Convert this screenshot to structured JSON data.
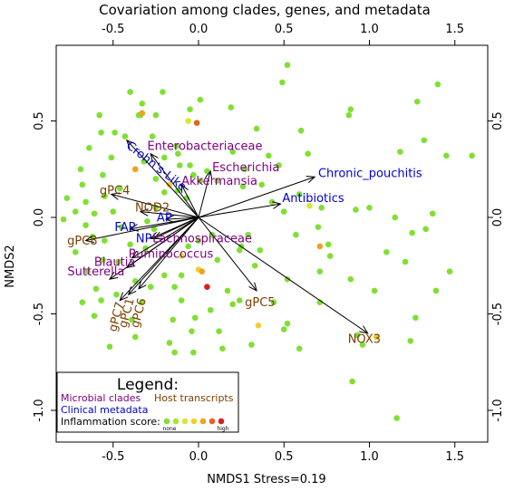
{
  "chart_data": {
    "type": "scatter",
    "title": "Covariation among clades, genes, and metadata",
    "xlabel": "NMDS1 Stress=0.19",
    "ylabel": "NMDS2",
    "xlim": [
      -0.85,
      1.7
    ],
    "ylim": [
      -1.2,
      0.85
    ],
    "xticks": [
      "-0.5",
      "0.0",
      "0.5",
      "1.0",
      "1.5"
    ],
    "xtick_values": [
      -0.5,
      0.0,
      0.5,
      1.0,
      1.5
    ],
    "yticks": [
      "-1.0",
      "-0.5",
      "0.0",
      "0.5"
    ],
    "ytick_values": [
      -1.0,
      -0.5,
      0.0,
      0.5
    ],
    "colors": {
      "microbial": "#800080",
      "clinical": "#0000cc",
      "host": "#7b3f00",
      "inflammation_scale": [
        "#7fe033",
        "#a8e833",
        "#d8e831",
        "#f0d030",
        "#f0a020",
        "#e86020",
        "#d82020"
      ]
    },
    "points": [
      {
        "x": 0.52,
        "y": 0.79,
        "c": 0
      },
      {
        "x": 0.49,
        "y": 0.7,
        "c": 0
      },
      {
        "x": 1.4,
        "y": 0.69,
        "c": 0
      },
      {
        "x": 1.28,
        "y": 0.6,
        "c": 0
      },
      {
        "x": -0.21,
        "y": 0.65,
        "c": 0
      },
      {
        "x": 0.01,
        "y": 0.61,
        "c": 0
      },
      {
        "x": -0.4,
        "y": 0.65,
        "c": 0
      },
      {
        "x": -0.33,
        "y": 0.59,
        "c": 0
      },
      {
        "x": -0.05,
        "y": 0.56,
        "c": 0
      },
      {
        "x": -0.34,
        "y": 0.53,
        "c": 0
      },
      {
        "x": -0.25,
        "y": 0.53,
        "c": 0
      },
      {
        "x": 0.19,
        "y": 0.57,
        "c": 0
      },
      {
        "x": -0.35,
        "y": 0.53,
        "c": 0
      },
      {
        "x": -0.58,
        "y": 0.53,
        "c": 0
      },
      {
        "x": -0.06,
        "y": 0.5,
        "c": 2
      },
      {
        "x": -0.01,
        "y": 0.49,
        "c": 5
      },
      {
        "x": -0.33,
        "y": 0.54,
        "c": 4
      },
      {
        "x": -0.49,
        "y": 0.44,
        "c": 0
      },
      {
        "x": -0.43,
        "y": 0.42,
        "c": 0
      },
      {
        "x": -0.57,
        "y": 0.44,
        "c": 0
      },
      {
        "x": -0.27,
        "y": 0.42,
        "c": 0
      },
      {
        "x": 0.34,
        "y": 0.46,
        "c": 0
      },
      {
        "x": 0.6,
        "y": 0.45,
        "c": 0
      },
      {
        "x": 0.89,
        "y": 0.56,
        "c": 0
      },
      {
        "x": 0.88,
        "y": 0.53,
        "c": 0
      },
      {
        "x": 1.32,
        "y": 0.4,
        "c": 0
      },
      {
        "x": 1.18,
        "y": 0.34,
        "c": 0
      },
      {
        "x": 1.45,
        "y": 0.32,
        "c": 0
      },
      {
        "x": 1.6,
        "y": 0.32,
        "c": 0
      },
      {
        "x": -0.64,
        "y": 0.36,
        "c": 0
      },
      {
        "x": -0.51,
        "y": 0.31,
        "c": 0
      },
      {
        "x": -0.69,
        "y": 0.25,
        "c": 0
      },
      {
        "x": -0.56,
        "y": 0.22,
        "c": 0
      },
      {
        "x": -0.68,
        "y": 0.17,
        "c": 0
      },
      {
        "x": -0.77,
        "y": 0.1,
        "c": 0
      },
      {
        "x": -0.66,
        "y": 0.08,
        "c": 0
      },
      {
        "x": -0.72,
        "y": 0.03,
        "c": 0
      },
      {
        "x": -0.79,
        "y": -0.01,
        "c": 0
      },
      {
        "x": -0.61,
        "y": 0.02,
        "c": 0
      },
      {
        "x": -0.66,
        "y": -0.04,
        "c": 0
      },
      {
        "x": -0.55,
        "y": 0.11,
        "c": 0
      },
      {
        "x": -0.46,
        "y": 0.15,
        "c": 0
      },
      {
        "x": -0.13,
        "y": 0.37,
        "c": 0
      },
      {
        "x": -0.12,
        "y": 0.33,
        "c": 0
      },
      {
        "x": -0.05,
        "y": 0.27,
        "c": 0
      },
      {
        "x": -0.11,
        "y": 0.27,
        "c": 0
      },
      {
        "x": 0.05,
        "y": 0.24,
        "c": 0
      },
      {
        "x": -0.03,
        "y": 0.22,
        "c": 0
      },
      {
        "x": 0.01,
        "y": 0.19,
        "c": 0
      },
      {
        "x": 0.11,
        "y": 0.19,
        "c": 0
      },
      {
        "x": 0.27,
        "y": 0.25,
        "c": 0
      },
      {
        "x": 0.2,
        "y": 0.34,
        "c": 0
      },
      {
        "x": 0.41,
        "y": 0.32,
        "c": 0
      },
      {
        "x": 0.47,
        "y": 0.27,
        "c": 0
      },
      {
        "x": 0.64,
        "y": 0.33,
        "c": 0
      },
      {
        "x": -0.37,
        "y": 0.25,
        "c": 4
      },
      {
        "x": -0.32,
        "y": 0.29,
        "c": 0
      },
      {
        "x": -0.2,
        "y": 0.31,
        "c": 0
      },
      {
        "x": -0.25,
        "y": 0.2,
        "c": 0
      },
      {
        "x": -0.2,
        "y": 0.13,
        "c": 0
      },
      {
        "x": -0.17,
        "y": 0.17,
        "c": 3
      },
      {
        "x": -0.12,
        "y": 0.14,
        "c": 0
      },
      {
        "x": -0.07,
        "y": 0.1,
        "c": 0
      },
      {
        "x": 0.26,
        "y": 0.16,
        "c": 0
      },
      {
        "x": 0.37,
        "y": 0.17,
        "c": 0
      },
      {
        "x": 0.43,
        "y": 0.08,
        "c": 0
      },
      {
        "x": 0.59,
        "y": 0.12,
        "c": 0
      },
      {
        "x": 0.5,
        "y": 0.03,
        "c": 0
      },
      {
        "x": 0.72,
        "y": 0.05,
        "c": 0
      },
      {
        "x": 0.92,
        "y": 0.04,
        "c": 0
      },
      {
        "x": 1.0,
        "y": 0.05,
        "c": 0
      },
      {
        "x": 1.15,
        "y": 0.0,
        "c": 0
      },
      {
        "x": 1.37,
        "y": 0.02,
        "c": 0
      },
      {
        "x": 1.33,
        "y": -0.06,
        "c": 0
      },
      {
        "x": 1.25,
        "y": -0.08,
        "c": 0
      },
      {
        "x": 0.65,
        "y": 0.06,
        "c": 2
      },
      {
        "x": 0.7,
        "y": -0.05,
        "c": 0
      },
      {
        "x": -0.5,
        "y": 0.03,
        "c": 0
      },
      {
        "x": -0.45,
        "y": -0.05,
        "c": 0
      },
      {
        "x": -0.3,
        "y": -0.02,
        "c": 0
      },
      {
        "x": -0.25,
        "y": 0.05,
        "c": 0
      },
      {
        "x": -0.4,
        "y": -0.14,
        "c": 0
      },
      {
        "x": -0.55,
        "y": -0.12,
        "c": 0
      },
      {
        "x": -0.62,
        "y": -0.1,
        "c": 0
      },
      {
        "x": -0.72,
        "y": -0.18,
        "c": 0
      },
      {
        "x": -0.56,
        "y": -0.22,
        "c": 0
      },
      {
        "x": -0.47,
        "y": -0.23,
        "c": 0
      },
      {
        "x": -0.37,
        "y": -0.33,
        "c": 0
      },
      {
        "x": -0.65,
        "y": -0.28,
        "c": 0
      },
      {
        "x": -0.6,
        "y": -0.37,
        "c": 0
      },
      {
        "x": -0.57,
        "y": -0.43,
        "c": 0
      },
      {
        "x": -0.48,
        "y": -0.4,
        "c": 0
      },
      {
        "x": -0.68,
        "y": -0.44,
        "c": 0
      },
      {
        "x": -0.61,
        "y": -0.51,
        "c": 0
      },
      {
        "x": -0.37,
        "y": -0.62,
        "c": 0
      },
      {
        "x": -0.39,
        "y": -0.53,
        "c": 0
      },
      {
        "x": -0.33,
        "y": -0.44,
        "c": 0
      },
      {
        "x": -0.28,
        "y": -0.36,
        "c": 0
      },
      {
        "x": -0.2,
        "y": -0.3,
        "c": 0
      },
      {
        "x": -0.14,
        "y": -0.36,
        "c": 0
      },
      {
        "x": -0.1,
        "y": -0.3,
        "c": 0
      },
      {
        "x": -0.1,
        "y": -0.2,
        "c": 2
      },
      {
        "x": -0.06,
        "y": -0.15,
        "c": 0
      },
      {
        "x": 0.0,
        "y": -0.27,
        "c": 3
      },
      {
        "x": 0.02,
        "y": -0.28,
        "c": 4
      },
      {
        "x": 0.05,
        "y": -0.36,
        "c": 6
      },
      {
        "x": 0.11,
        "y": -0.22,
        "c": 0
      },
      {
        "x": 0.17,
        "y": -0.38,
        "c": 0
      },
      {
        "x": 0.2,
        "y": -0.45,
        "c": 0
      },
      {
        "x": 0.24,
        "y": -0.43,
        "c": 0
      },
      {
        "x": 0.07,
        "y": -0.48,
        "c": 0
      },
      {
        "x": -0.02,
        "y": -0.52,
        "c": 0
      },
      {
        "x": -0.1,
        "y": -0.43,
        "c": 0
      },
      {
        "x": -0.15,
        "y": -0.53,
        "c": 0
      },
      {
        "x": 0.12,
        "y": -0.59,
        "c": 0
      },
      {
        "x": 0.14,
        "y": -0.68,
        "c": 0
      },
      {
        "x": -0.04,
        "y": -0.59,
        "c": 0
      },
      {
        "x": -0.17,
        "y": -0.65,
        "c": 0
      },
      {
        "x": -0.14,
        "y": -0.7,
        "c": 0
      },
      {
        "x": -0.03,
        "y": -0.7,
        "c": 0
      },
      {
        "x": 0.31,
        "y": -0.66,
        "c": 0
      },
      {
        "x": 0.35,
        "y": -0.56,
        "c": 3
      },
      {
        "x": 0.44,
        "y": -0.44,
        "c": 0
      },
      {
        "x": 0.52,
        "y": -0.55,
        "c": 0
      },
      {
        "x": 0.59,
        "y": -0.68,
        "c": 0
      },
      {
        "x": 0.33,
        "y": -0.25,
        "c": 0
      },
      {
        "x": 0.36,
        "y": -0.17,
        "c": 0
      },
      {
        "x": 0.24,
        "y": -0.17,
        "c": 0
      },
      {
        "x": 0.52,
        "y": -0.32,
        "c": 0
      },
      {
        "x": 0.57,
        "y": -0.09,
        "c": 0
      },
      {
        "x": 0.76,
        "y": -0.14,
        "c": 0
      },
      {
        "x": 0.77,
        "y": -0.2,
        "c": 0
      },
      {
        "x": 0.71,
        "y": -0.28,
        "c": 0
      },
      {
        "x": 0.71,
        "y": -0.15,
        "c": 4
      },
      {
        "x": 0.89,
        "y": -0.32,
        "c": 0
      },
      {
        "x": 1.1,
        "y": -0.18,
        "c": 0
      },
      {
        "x": 1.21,
        "y": -0.23,
        "c": 0
      },
      {
        "x": 1.03,
        "y": -0.38,
        "c": 0
      },
      {
        "x": 1.39,
        "y": -0.38,
        "c": 0
      },
      {
        "x": 1.47,
        "y": -0.28,
        "c": 0
      },
      {
        "x": 1.27,
        "y": -0.52,
        "c": 0
      },
      {
        "x": 1.24,
        "y": -0.64,
        "c": 0
      },
      {
        "x": 0.5,
        "y": -0.58,
        "c": 0
      },
      {
        "x": 0.71,
        "y": -0.44,
        "c": 0
      },
      {
        "x": 0.93,
        "y": -0.61,
        "c": 0
      },
      {
        "x": 0.96,
        "y": -0.66,
        "c": 0
      },
      {
        "x": 1.04,
        "y": -0.62,
        "c": 3
      },
      {
        "x": 1.16,
        "y": -1.04,
        "c": 0
      },
      {
        "x": 0.9,
        "y": -0.85,
        "c": 0
      },
      {
        "x": 0.25,
        "y": -0.15,
        "c": 0
      },
      {
        "x": 0.29,
        "y": -0.09,
        "c": 0
      },
      {
        "x": 0.08,
        "y": -0.09,
        "c": 0
      },
      {
        "x": -0.26,
        "y": -0.06,
        "c": 0
      },
      {
        "x": -0.52,
        "y": -0.67,
        "c": 0
      },
      {
        "x": -0.31,
        "y": -0.16,
        "c": 0
      },
      {
        "x": 0.0,
        "y": -0.12,
        "c": 0
      }
    ],
    "vectors": [
      {
        "label": "Chronic_pouchitis",
        "group": "clinical",
        "x": 0.68,
        "y": 0.21,
        "lx": 0.7,
        "ly": 0.21,
        "anchor": "start",
        "rot": 0
      },
      {
        "label": "Antibiotics",
        "group": "clinical",
        "x": 0.48,
        "y": 0.07,
        "lx": 0.49,
        "ly": 0.08,
        "anchor": "start",
        "rot": 0
      },
      {
        "label": "NOX3",
        "group": "host",
        "x": 0.99,
        "y": -0.6,
        "lx": 0.97,
        "ly": -0.65,
        "anchor": "middle",
        "rot": 0
      },
      {
        "label": "gPC5",
        "group": "host",
        "x": 0.34,
        "y": -0.38,
        "lx": 0.36,
        "ly": -0.46,
        "anchor": "middle",
        "rot": 0
      },
      {
        "label": "Crohn's-Like",
        "group": "clinical",
        "x": -0.42,
        "y": 0.4,
        "lx": -0.26,
        "ly": 0.25,
        "anchor": "middle",
        "rot": 38
      },
      {
        "label": "Enterobacteriaceae",
        "group": "microbial",
        "x": -0.28,
        "y": 0.33,
        "lx": -0.3,
        "ly": 0.35,
        "anchor": "start",
        "rot": 0
      },
      {
        "label": "Escherichia",
        "group": "microbial",
        "x": 0.07,
        "y": 0.24,
        "lx": 0.08,
        "ly": 0.24,
        "anchor": "start",
        "rot": 0
      },
      {
        "label": "Akkermansia",
        "group": "microbial",
        "x": -0.1,
        "y": 0.17,
        "lx": -0.1,
        "ly": 0.17,
        "anchor": "start",
        "rot": 0
      },
      {
        "label": "gPC4",
        "group": "host",
        "x": -0.51,
        "y": 0.12,
        "lx": -0.49,
        "ly": 0.12,
        "anchor": "middle",
        "rot": 0
      },
      {
        "label": "NOD2",
        "group": "host",
        "x": -0.34,
        "y": 0.03,
        "lx": -0.27,
        "ly": 0.03,
        "anchor": "middle",
        "rot": 0
      },
      {
        "label": "AP",
        "group": "clinical",
        "x": -0.19,
        "y": -0.01,
        "lx": -0.2,
        "ly": -0.02,
        "anchor": "middle",
        "rot": 0
      },
      {
        "label": "FAP",
        "group": "clinical",
        "x": -0.4,
        "y": -0.06,
        "lx": -0.43,
        "ly": -0.07,
        "anchor": "middle",
        "rot": 0
      },
      {
        "label": "NP",
        "group": "clinical",
        "x": -0.28,
        "y": -0.11,
        "lx": -0.32,
        "ly": -0.13,
        "anchor": "middle",
        "rot": 0
      },
      {
        "label": "Lachnospiraceae",
        "group": "microbial",
        "x": -0.26,
        "y": -0.11,
        "lx": -0.27,
        "ly": -0.13,
        "anchor": "start",
        "rot": 0
      },
      {
        "label": "gPC8",
        "group": "host",
        "x": -0.66,
        "y": -0.12,
        "lx": -0.68,
        "ly": -0.14,
        "anchor": "middle",
        "rot": 0
      },
      {
        "label": "Ruminococcus",
        "group": "microbial",
        "x": -0.39,
        "y": -0.21,
        "lx": -0.41,
        "ly": -0.21,
        "anchor": "start",
        "rot": 0
      },
      {
        "label": "Blautia",
        "group": "microbial",
        "x": -0.42,
        "y": -0.26,
        "lx": -0.49,
        "ly": -0.25,
        "anchor": "middle",
        "rot": 0
      },
      {
        "label": "Sutterella",
        "group": "microbial",
        "x": -0.52,
        "y": -0.32,
        "lx": -0.6,
        "ly": -0.3,
        "anchor": "middle",
        "rot": 0
      },
      {
        "label": "gPC6",
        "group": "host",
        "x": -0.35,
        "y": -0.37,
        "lx": -0.33,
        "ly": -0.5,
        "anchor": "middle",
        "rot": -75
      },
      {
        "label": "gPC1",
        "group": "host",
        "x": -0.41,
        "y": -0.4,
        "lx": -0.4,
        "ly": -0.5,
        "anchor": "middle",
        "rot": -75
      },
      {
        "label": "gPC7",
        "group": "host",
        "x": -0.46,
        "y": -0.43,
        "lx": -0.46,
        "ly": -0.52,
        "anchor": "middle",
        "rot": -75
      }
    ],
    "legend": {
      "title": "Legend:",
      "microbial": "Microbial clades",
      "host": "Host transcripts",
      "clinical": "Clinical metadata",
      "inflammation": "Inflammation score:",
      "none": "none",
      "high": "high",
      "placement": "bottom-left"
    }
  }
}
